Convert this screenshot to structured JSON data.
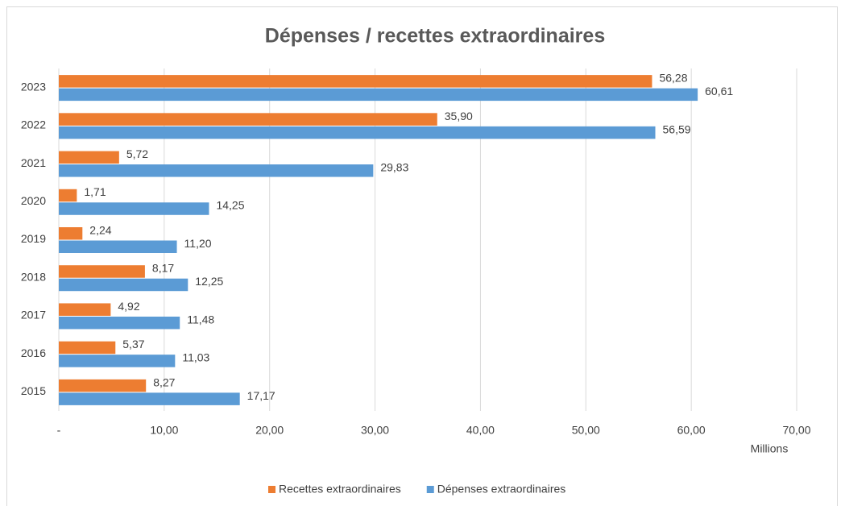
{
  "chart_data": {
    "type": "hbar",
    "title": "Dépenses / recettes extraordinaires",
    "categories": [
      "2015",
      "2016",
      "2017",
      "2018",
      "2019",
      "2020",
      "2021",
      "2022",
      "2023"
    ],
    "series": [
      {
        "name": "Recettes extraordinaires",
        "color": "#ed7d31",
        "values": [
          8.27,
          5.37,
          4.92,
          8.17,
          2.24,
          1.71,
          5.72,
          35.9,
          56.28
        ],
        "value_labels": [
          "8,27",
          "5,37",
          "4,92",
          "8,17",
          "2,24",
          "1,71",
          "5,72",
          "35,90",
          "56,28"
        ]
      },
      {
        "name": "Dépenses extraordinaires",
        "color": "#5b9bd5",
        "values": [
          17.17,
          11.03,
          11.48,
          12.25,
          11.2,
          14.25,
          29.83,
          56.59,
          60.61
        ],
        "value_labels": [
          "17,17",
          "11,03",
          "11,48",
          "12,25",
          "11,20",
          "14,25",
          "29,83",
          "56,59",
          "60,61"
        ]
      }
    ],
    "xlim": [
      0,
      70
    ],
    "xticks": [
      {
        "value": 0,
        "label": "-"
      },
      {
        "value": 10,
        "label": "10,00"
      },
      {
        "value": 20,
        "label": "20,00"
      },
      {
        "value": 30,
        "label": "30,00"
      },
      {
        "value": 40,
        "label": "40,00"
      },
      {
        "value": 50,
        "label": "50,00"
      },
      {
        "value": 60,
        "label": "60,00"
      },
      {
        "value": 70,
        "label": "70,00"
      }
    ],
    "xlabel": "Millions",
    "grid": true,
    "legend": "bottom"
  }
}
